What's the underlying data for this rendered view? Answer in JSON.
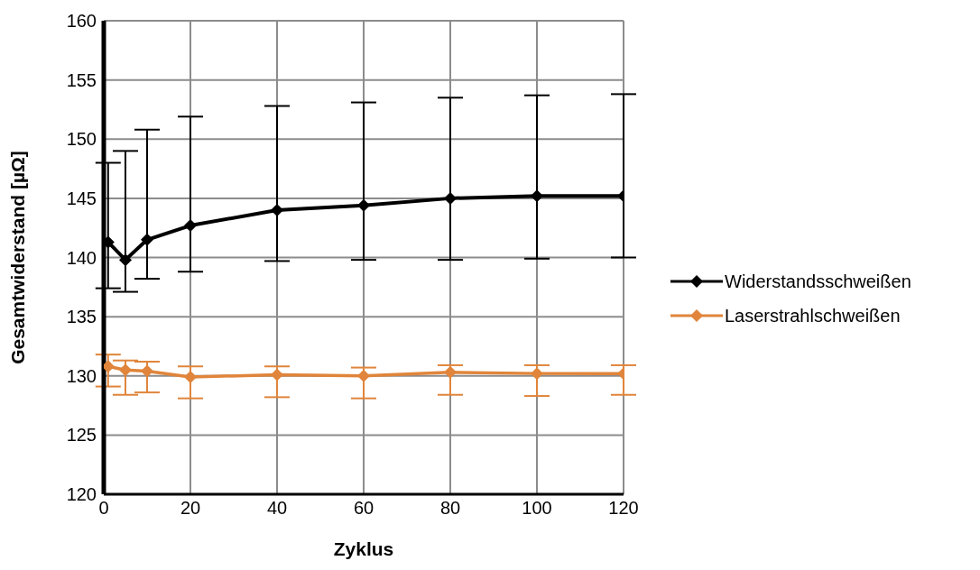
{
  "chart_data": {
    "type": "line",
    "xlabel": "Zyklus",
    "ylabel": "Gesamtwiderstand [µΩ]",
    "x": [
      1,
      5,
      10,
      20,
      40,
      60,
      80,
      100,
      120
    ],
    "xlim": [
      0,
      120
    ],
    "xticks": [
      0,
      20,
      40,
      60,
      80,
      100,
      120
    ],
    "ylim": [
      120,
      160
    ],
    "yticks": [
      120,
      125,
      130,
      135,
      140,
      145,
      150,
      155,
      160
    ],
    "grid": true,
    "legend": "right",
    "marker": "diamond",
    "line_style": "solid",
    "series": [
      {
        "name": "Widerstandsschweißen",
        "color": "#000000",
        "values": [
          141.3,
          139.8,
          141.5,
          142.7,
          144.0,
          144.4,
          145.0,
          145.2,
          145.2
        ],
        "errors": [
          [
            137.4,
            148.0
          ],
          [
            137.1,
            149.0
          ],
          [
            138.2,
            150.8
          ],
          [
            138.8,
            151.9
          ],
          [
            139.7,
            152.8
          ],
          [
            139.8,
            153.1
          ],
          [
            139.8,
            153.5
          ],
          [
            139.9,
            153.7
          ],
          [
            140.0,
            153.8
          ]
        ]
      },
      {
        "name": "Laserstrahlschweißen",
        "color": "#e0853b",
        "values": [
          130.8,
          130.5,
          130.4,
          129.9,
          130.1,
          130.0,
          130.3,
          130.2,
          130.2
        ],
        "errors": [
          [
            129.1,
            131.8
          ],
          [
            128.4,
            131.3
          ],
          [
            128.6,
            131.2
          ],
          [
            128.1,
            130.8
          ],
          [
            128.2,
            130.8
          ],
          [
            128.1,
            130.7
          ],
          [
            128.4,
            130.9
          ],
          [
            128.3,
            130.9
          ],
          [
            128.4,
            130.9
          ]
        ]
      }
    ]
  }
}
